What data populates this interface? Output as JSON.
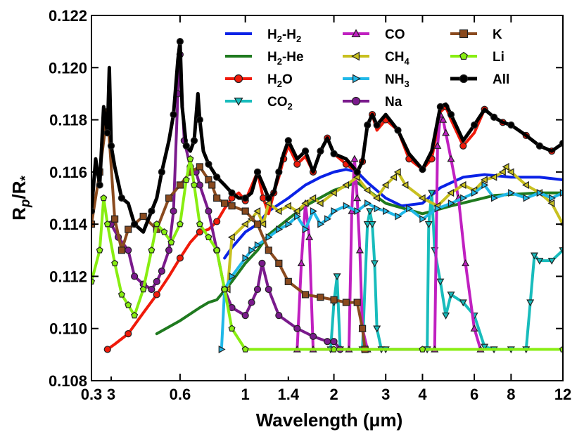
{
  "chart_data": {
    "type": "line",
    "title": "",
    "xlabel": "Wavelength (μm)",
    "ylabel_main": "R",
    "ylabel_sub_p": "p",
    "ylabel_slash": "/R",
    "ylabel_sub_star": "*",
    "xscale": "log",
    "xlim": [
      0.3,
      12
    ],
    "ylim": [
      0.108,
      0.122
    ],
    "xticks": [
      0.3,
      0.6,
      1,
      2,
      3,
      4,
      6,
      8,
      12
    ],
    "xtick_labels": [
      "0.3",
      "0.6",
      "1",
      "2",
      "3",
      "4",
      "6",
      "8",
      "12"
    ],
    "x_extra_labels": [
      {
        "x": 0.35,
        "text": "3"
      },
      {
        "x": 1.4,
        "text": "1.4"
      }
    ],
    "yticks": [
      0.108,
      0.11,
      0.112,
      0.114,
      0.116,
      0.118,
      0.12,
      0.122
    ],
    "ytick_labels": [
      "0.108",
      "0.110",
      "0.112",
      "0.114",
      "0.116",
      "0.118",
      "0.120",
      "0.122"
    ],
    "legend_position": "top-right",
    "series": [
      {
        "name": "H2-H2",
        "label_main": "H",
        "label_parts": [
          "H",
          "2",
          "-H",
          "2"
        ],
        "color": "#0a22e6",
        "marker": "none",
        "x": [
          0.85,
          0.9,
          1.0,
          1.1,
          1.2,
          1.4,
          1.6,
          1.8,
          2.0,
          2.2,
          2.4,
          2.6,
          3.0,
          3.4,
          4.0,
          4.6,
          5.5,
          6.5,
          8.0,
          10.0,
          12.0
        ],
        "y": [
          0.1127,
          0.1131,
          0.1137,
          0.114,
          0.1145,
          0.115,
          0.1155,
          0.1158,
          0.116,
          0.1161,
          0.116,
          0.1156,
          0.115,
          0.1147,
          0.1148,
          0.1154,
          0.1158,
          0.1159,
          0.1158,
          0.1158,
          0.1157
        ]
      },
      {
        "name": "H2-He",
        "label_parts": [
          "H",
          "2",
          "-He",
          ""
        ],
        "color": "#1f7a1f",
        "marker": "none",
        "x": [
          0.5,
          0.6,
          0.7,
          0.75,
          0.8,
          0.9,
          1.0,
          1.1,
          1.2,
          1.4,
          1.6,
          2.0,
          2.4,
          3.0,
          4.0,
          5.0,
          7.0,
          10.0,
          12.0
        ],
        "y": [
          0.1098,
          0.1103,
          0.1108,
          0.111,
          0.1111,
          0.1118,
          0.1125,
          0.113,
          0.1136,
          0.1142,
          0.1147,
          0.1153,
          0.1156,
          0.1148,
          0.1144,
          0.1147,
          0.1151,
          0.1152,
          0.1152
        ]
      },
      {
        "name": "H2O",
        "label_parts": [
          "H",
          "2",
          "O",
          ""
        ],
        "color": "#f01a0a",
        "marker": "circle",
        "x": [
          0.34,
          0.36,
          0.4,
          0.45,
          0.5,
          0.55,
          0.6,
          0.65,
          0.7,
          0.75,
          0.8,
          0.85,
          0.9,
          0.95,
          1.0,
          1.1,
          1.15,
          1.2,
          1.25,
          1.3,
          1.35,
          1.4,
          1.5,
          1.6,
          1.7,
          1.8,
          1.9,
          2.0,
          2.2,
          2.4,
          2.5,
          2.6,
          2.7,
          2.8,
          3.0,
          3.3,
          3.6,
          4.0,
          4.3,
          4.6,
          4.8,
          5.0,
          5.5,
          6.0,
          6.5,
          7.0,
          7.5,
          8.0,
          9.0,
          10.0,
          11.0,
          12.0
        ],
        "y": [
          0.1092,
          0.1094,
          0.1098,
          0.1106,
          0.1113,
          0.112,
          0.1127,
          0.1133,
          0.1137,
          0.1138,
          0.1141,
          0.1146,
          0.115,
          0.1152,
          0.1149,
          0.116,
          0.115,
          0.1144,
          0.1152,
          0.1158,
          0.1165,
          0.117,
          0.1163,
          0.1166,
          0.116,
          0.1168,
          0.1173,
          0.1167,
          0.1163,
          0.116,
          0.1164,
          0.1178,
          0.1182,
          0.1176,
          0.118,
          0.1176,
          0.1165,
          0.1161,
          0.1165,
          0.1183,
          0.1185,
          0.118,
          0.117,
          0.1175,
          0.1184,
          0.1181,
          0.1179,
          0.1178,
          0.1174,
          0.117,
          0.1168,
          0.1171
        ]
      },
      {
        "name": "CO2",
        "label_parts": [
          "CO",
          "2",
          "",
          ""
        ],
        "color": "#18bcbc",
        "marker": "triangle-down",
        "x": [
          1.95,
          2.0,
          2.05,
          2.1,
          2.5,
          2.6,
          2.65,
          2.7,
          2.75,
          2.8,
          2.9,
          3.0,
          4.15,
          4.2,
          4.3,
          4.4,
          4.6,
          4.8,
          5.0,
          5.5,
          6.0,
          6.5,
          7.0,
          8.0,
          9.0,
          9.3,
          9.6,
          10.0,
          11.0,
          12.0
        ],
        "y": [
          0.1092,
          0.111,
          0.112,
          0.1092,
          0.1092,
          0.114,
          0.1145,
          0.114,
          0.1125,
          0.11,
          0.1092,
          0.1092,
          0.1092,
          0.114,
          0.1152,
          0.113,
          0.1118,
          0.1105,
          0.1113,
          0.111,
          0.1105,
          0.1093,
          0.1092,
          0.1092,
          0.1092,
          0.111,
          0.1128,
          0.1126,
          0.1126,
          0.113
        ]
      },
      {
        "name": "CO",
        "label_parts": [
          "CO",
          "",
          "",
          ""
        ],
        "color": "#c020c0",
        "marker": "triangle-up",
        "x": [
          1.5,
          1.55,
          1.6,
          1.65,
          1.7,
          2.25,
          2.3,
          2.35,
          2.4,
          2.45,
          2.5,
          2.6,
          4.4,
          4.5,
          4.6,
          4.7,
          4.8,
          5.0,
          5.3,
          5.6,
          6.0,
          6.3
        ],
        "y": [
          0.1092,
          0.1125,
          0.1148,
          0.1135,
          0.1092,
          0.1092,
          0.1145,
          0.1165,
          0.115,
          0.113,
          0.11,
          0.1092,
          0.1092,
          0.117,
          0.1182,
          0.118,
          0.1175,
          0.1165,
          0.115,
          0.1125,
          0.11,
          0.1092
        ]
      },
      {
        "name": "CH4",
        "label_parts": [
          "CH",
          "4",
          "",
          ""
        ],
        "color": "#c8c020",
        "marker": "triangle-left",
        "x": [
          0.87,
          0.9,
          1.0,
          1.05,
          1.1,
          1.15,
          1.2,
          1.3,
          1.4,
          1.5,
          1.6,
          1.7,
          1.8,
          2.0,
          2.2,
          2.4,
          2.6,
          2.8,
          3.0,
          3.2,
          3.3,
          3.5,
          4.0,
          4.5,
          5.0,
          5.5,
          6.0,
          6.5,
          7.0,
          7.5,
          7.7,
          8.0,
          9.0,
          10.0,
          11.0,
          12.0
        ],
        "y": [
          0.1115,
          0.1135,
          0.114,
          0.1142,
          0.1145,
          0.114,
          0.1148,
          0.1145,
          0.1147,
          0.1145,
          0.1148,
          0.115,
          0.1148,
          0.1152,
          0.1155,
          0.1158,
          0.1153,
          0.115,
          0.1155,
          0.1158,
          0.116,
          0.1155,
          0.115,
          0.1147,
          0.1152,
          0.1155,
          0.1153,
          0.1157,
          0.1158,
          0.116,
          0.1162,
          0.116,
          0.1155,
          0.1152,
          0.1148,
          0.114
        ]
      },
      {
        "name": "NH3",
        "label_parts": [
          "NH",
          "3",
          "",
          ""
        ],
        "color": "#20b8e8",
        "marker": "triangle-right",
        "x": [
          0.83,
          0.85,
          0.9,
          1.0,
          1.05,
          1.1,
          1.2,
          1.3,
          1.4,
          1.5,
          1.6,
          1.7,
          1.8,
          1.9,
          2.0,
          2.2,
          2.4,
          2.6,
          2.8,
          3.0,
          3.3,
          3.6,
          4.0,
          4.5,
          5.0,
          5.5,
          6.0,
          6.5,
          7.0,
          8.0,
          9.0,
          10.0,
          11.0,
          12.0
        ],
        "y": [
          0.1092,
          0.1115,
          0.112,
          0.1127,
          0.113,
          0.1132,
          0.1135,
          0.1138,
          0.114,
          0.1143,
          0.1138,
          0.1145,
          0.114,
          0.1142,
          0.1145,
          0.1147,
          0.1145,
          0.1148,
          0.1146,
          0.1145,
          0.1143,
          0.1146,
          0.1142,
          0.1146,
          0.1148,
          0.115,
          0.1152,
          0.1155,
          0.115,
          0.1152,
          0.115,
          0.1152,
          0.115,
          0.1152
        ]
      },
      {
        "name": "Na",
        "label_parts": [
          "Na",
          "",
          "",
          ""
        ],
        "color": "#7a1a8c",
        "marker": "circle",
        "x": [
          0.35,
          0.37,
          0.4,
          0.42,
          0.45,
          0.48,
          0.5,
          0.52,
          0.55,
          0.57,
          0.59,
          0.6,
          0.62,
          0.65,
          0.68,
          0.7,
          0.75,
          0.8,
          0.85,
          0.9,
          1.0,
          1.05,
          1.1,
          1.14,
          1.2,
          1.3,
          1.5,
          1.7,
          1.9,
          2.0,
          2.1
        ],
        "y": [
          0.114,
          0.1135,
          0.113,
          0.112,
          0.1117,
          0.1115,
          0.1118,
          0.1122,
          0.113,
          0.1145,
          0.119,
          0.1205,
          0.1172,
          0.1162,
          0.116,
          0.1155,
          0.1145,
          0.113,
          0.1115,
          0.1108,
          0.1105,
          0.111,
          0.1115,
          0.1125,
          0.1115,
          0.1105,
          0.11,
          0.1097,
          0.1095,
          0.1095,
          0.1092
        ]
      },
      {
        "name": "K",
        "label_parts": [
          "K",
          "",
          "",
          ""
        ],
        "color": "#8a4a1e",
        "marker": "square",
        "x": [
          0.3,
          0.32,
          0.34,
          0.36,
          0.38,
          0.4,
          0.45,
          0.5,
          0.55,
          0.6,
          0.65,
          0.7,
          0.75,
          0.77,
          0.8,
          0.85,
          0.9,
          1.0,
          1.1,
          1.2,
          1.3,
          1.4,
          1.6,
          1.8,
          2.0,
          2.2,
          2.4,
          2.5,
          2.55
        ],
        "y": [
          0.114,
          0.116,
          0.1183,
          0.1142,
          0.113,
          0.1138,
          0.1143,
          0.1138,
          0.115,
          0.1155,
          0.116,
          0.1162,
          0.1157,
          0.1155,
          0.115,
          0.1148,
          0.1147,
          0.1145,
          0.114,
          0.113,
          0.1125,
          0.1118,
          0.1113,
          0.1112,
          0.1111,
          0.111,
          0.111,
          0.11,
          0.1092
        ]
      },
      {
        "name": "Li",
        "label_parts": [
          "Li",
          "",
          "",
          ""
        ],
        "color": "#88ee11",
        "marker": "pentagon",
        "x": [
          0.3,
          0.32,
          0.33,
          0.34,
          0.36,
          0.38,
          0.4,
          0.42,
          0.45,
          0.48,
          0.5,
          0.53,
          0.56,
          0.6,
          0.63,
          0.65,
          0.67,
          0.7,
          0.75,
          0.8,
          0.85,
          0.9,
          1.0,
          2.0,
          4.0,
          12.0
        ],
        "y": [
          0.1118,
          0.113,
          0.115,
          0.114,
          0.1125,
          0.1113,
          0.1109,
          0.1105,
          0.1115,
          0.113,
          0.114,
          0.1137,
          0.1133,
          0.114,
          0.1157,
          0.1165,
          0.1155,
          0.114,
          0.1135,
          0.113,
          0.1115,
          0.11,
          0.1092,
          0.1092,
          0.1092,
          0.1092
        ]
      },
      {
        "name": "All",
        "label_parts": [
          "All",
          "",
          "",
          ""
        ],
        "color": "#000000",
        "marker": "circle",
        "x": [
          0.3,
          0.31,
          0.32,
          0.33,
          0.34,
          0.345,
          0.35,
          0.36,
          0.38,
          0.4,
          0.42,
          0.45,
          0.48,
          0.5,
          0.52,
          0.55,
          0.57,
          0.59,
          0.6,
          0.61,
          0.63,
          0.65,
          0.67,
          0.69,
          0.7,
          0.72,
          0.75,
          0.78,
          0.8,
          0.85,
          0.9,
          0.95,
          1.0,
          1.05,
          1.1,
          1.15,
          1.2,
          1.25,
          1.3,
          1.35,
          1.4,
          1.5,
          1.6,
          1.7,
          1.8,
          1.9,
          2.0,
          2.2,
          2.4,
          2.5,
          2.6,
          2.7,
          2.8,
          3.0,
          3.3,
          3.6,
          4.0,
          4.3,
          4.6,
          4.8,
          5.0,
          5.5,
          6.0,
          6.5,
          7.0,
          7.5,
          8.0,
          9.0,
          10.0,
          11.0,
          12.0
        ],
        "y": [
          0.1145,
          0.1165,
          0.1155,
          0.1185,
          0.1175,
          0.12,
          0.117,
          0.1162,
          0.115,
          0.1148,
          0.114,
          0.1137,
          0.1145,
          0.115,
          0.116,
          0.1172,
          0.1182,
          0.1203,
          0.121,
          0.1185,
          0.117,
          0.1168,
          0.1172,
          0.119,
          0.118,
          0.1168,
          0.1163,
          0.116,
          0.1158,
          0.1155,
          0.1152,
          0.115,
          0.115,
          0.1152,
          0.116,
          0.1155,
          0.115,
          0.1152,
          0.116,
          0.1167,
          0.1172,
          0.1165,
          0.1168,
          0.116,
          0.1168,
          0.1173,
          0.1167,
          0.1165,
          0.116,
          0.1164,
          0.1178,
          0.1182,
          0.1178,
          0.1182,
          0.1176,
          0.1167,
          0.1161,
          0.1168,
          0.1185,
          0.1186,
          0.1182,
          0.1172,
          0.1178,
          0.1184,
          0.1181,
          0.1179,
          0.1178,
          0.1174,
          0.117,
          0.1168,
          0.1171
        ]
      }
    ]
  }
}
